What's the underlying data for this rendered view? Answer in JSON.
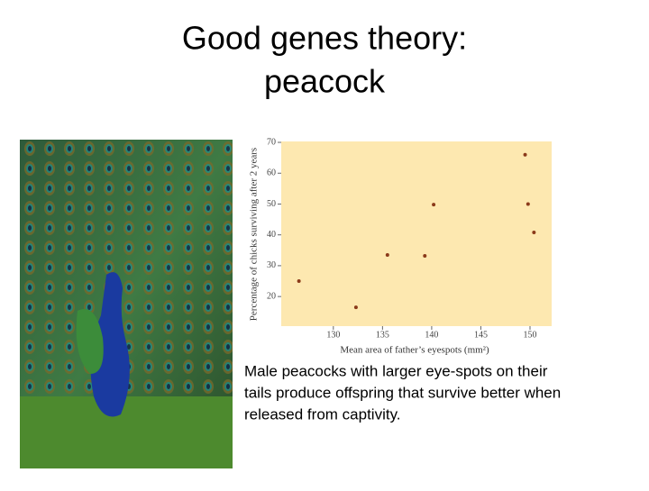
{
  "slide": {
    "title_lines": [
      "Good genes theory:",
      "peacock"
    ],
    "caption_lines": [
      "Male peacocks with larger eye-spots on their",
      "tails produce offspring that survive better when",
      "released from captivity."
    ]
  },
  "chart_data": {
    "type": "scatter",
    "x_label": "Mean area of father’s eyespots (mm²)",
    "y_label": "Percentage of chicks surviving after 2 years",
    "x": [
      126.5,
      132.3,
      135.5,
      139.3,
      140.2,
      149.5,
      149.8,
      150.4
    ],
    "values": [
      25,
      16.5,
      33.5,
      33.2,
      49.8,
      66,
      50,
      40.8
    ],
    "color": "#8b3a1a",
    "xlim": [
      124.7,
      152.2
    ],
    "xticks": [
      130,
      135,
      140,
      145,
      150
    ],
    "ylim": [
      10.4,
      70.3
    ],
    "yticks": [
      20,
      30,
      40,
      50,
      60,
      70
    ]
  }
}
